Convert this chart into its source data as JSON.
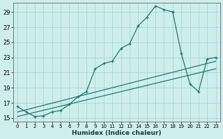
{
  "xlabel": "Humidex (Indice chaleur)",
  "bg_color": "#ceeeed",
  "grid_color": "#aad4d4",
  "line_color": "#1a7a6e",
  "xlim": [
    -0.5,
    23.5
  ],
  "ylim": [
    14.5,
    30.2
  ],
  "yticks": [
    15,
    17,
    19,
    21,
    23,
    25,
    27,
    29
  ],
  "xticks": [
    0,
    1,
    2,
    3,
    4,
    5,
    6,
    7,
    8,
    9,
    10,
    11,
    12,
    13,
    14,
    15,
    16,
    17,
    18,
    19,
    20,
    21,
    22,
    23
  ],
  "main_line_x": [
    0,
    1,
    2,
    3,
    4,
    5,
    6,
    7,
    8,
    9,
    10,
    11,
    12,
    13,
    14,
    15,
    16,
    17,
    18
  ],
  "main_line_y": [
    16.5,
    15.8,
    15.2,
    15.3,
    15.8,
    16.0,
    16.8,
    17.8,
    18.5,
    21.5,
    22.2,
    22.5,
    24.2,
    24.8,
    27.2,
    28.3,
    29.8,
    29.3,
    29.0
  ],
  "upper_line_x": [
    0,
    23
  ],
  "upper_line_y": [
    15.8,
    22.5
  ],
  "lower_line_x": [
    0,
    23
  ],
  "lower_line_y": [
    15.2,
    21.5
  ],
  "right_line_x": [
    18,
    19,
    20,
    21,
    22,
    23
  ],
  "right_line_y": [
    29.0,
    23.5,
    19.5,
    18.5,
    22.8,
    23.0
  ]
}
